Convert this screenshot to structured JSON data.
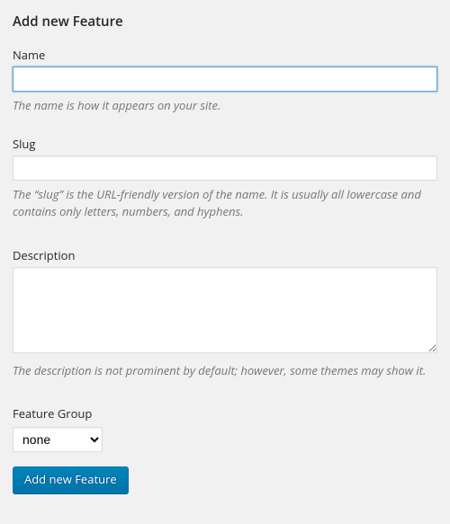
{
  "form": {
    "title": "Add new Feature",
    "name": {
      "label": "Name",
      "value": "",
      "description": "The name is how it appears on your site."
    },
    "slug": {
      "label": "Slug",
      "value": "",
      "description": "The “slug” is the URL-friendly version of the name. It is usually all lowercase and contains only letters, numbers, and hyphens."
    },
    "description": {
      "label": "Description",
      "value": "",
      "description": "The description is not prominent by default; however, some themes may show it."
    },
    "feature_group": {
      "label": "Feature Group",
      "selected": "none"
    },
    "submit_label": "Add new Feature"
  },
  "colors": {
    "page_bg": "#f1f1f1",
    "text": "#23282d",
    "muted": "#72777c",
    "input_border": "#ddd",
    "input_focus_border": "#5b9dd9",
    "button_bg": "#0085ba",
    "button_border": "#0073aa",
    "button_text": "#ffffff"
  }
}
